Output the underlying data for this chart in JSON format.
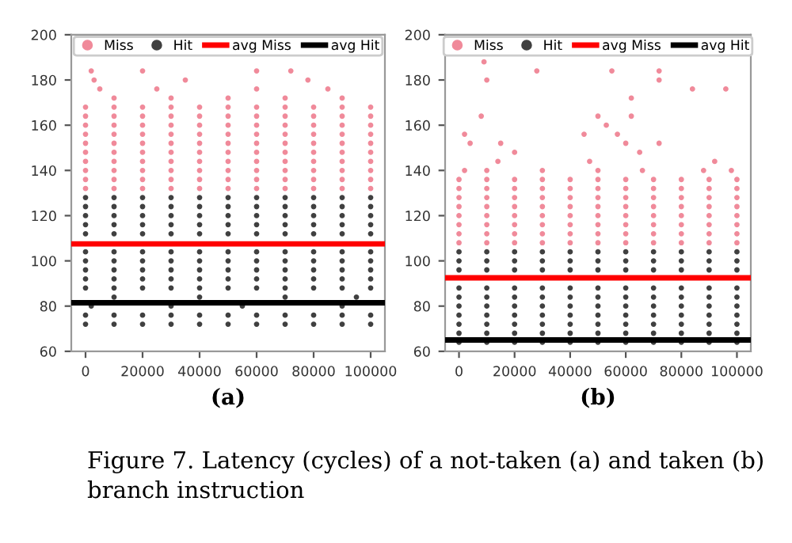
{
  "chart_data": [
    {
      "type": "scatter",
      "xlabel": "(a)",
      "xlim": [
        -5000,
        105000
      ],
      "ylim": [
        60,
        200
      ],
      "xticks": [
        0,
        20000,
        40000,
        60000,
        80000,
        100000
      ],
      "yticks": [
        60,
        80,
        100,
        120,
        140,
        160,
        180,
        200
      ],
      "grid": false,
      "legend": "top",
      "marker": "circle",
      "series": [
        {
          "name": "Miss",
          "color": "#f08a9a",
          "x": [
            0,
            10000,
            20000,
            30000,
            40000,
            50000,
            60000,
            70000,
            80000,
            90000,
            100000,
            0,
            10000,
            20000,
            30000,
            40000,
            50000,
            60000,
            70000,
            80000,
            90000,
            100000,
            0,
            10000,
            20000,
            30000,
            40000,
            50000,
            60000,
            70000,
            80000,
            90000,
            100000,
            0,
            10000,
            20000,
            30000,
            40000,
            50000,
            60000,
            70000,
            80000,
            90000,
            100000,
            0,
            10000,
            20000,
            30000,
            40000,
            50000,
            60000,
            70000,
            80000,
            90000,
            100000,
            0,
            10000,
            20000,
            30000,
            40000,
            50000,
            60000,
            70000,
            80000,
            90000,
            100000,
            0,
            10000,
            20000,
            30000,
            40000,
            50000,
            60000,
            70000,
            80000,
            90000,
            100000,
            0,
            10000,
            20000,
            30000,
            40000,
            50000,
            60000,
            70000,
            80000,
            90000,
            100000,
            0,
            10000,
            20000,
            30000,
            40000,
            50000,
            60000,
            70000,
            80000,
            90000,
            100000,
            0,
            10000,
            20000,
            30000,
            40000,
            50000,
            60000,
            70000,
            80000,
            90000,
            100000,
            10000,
            30000,
            50000,
            70000,
            90000,
            5000,
            25000,
            60000,
            85000,
            3000,
            35000,
            78000,
            2000,
            20000,
            60000,
            72000
          ],
          "values": [
            132,
            132,
            132,
            132,
            132,
            132,
            132,
            132,
            132,
            132,
            132,
            136,
            136,
            136,
            136,
            136,
            136,
            136,
            136,
            136,
            136,
            136,
            140,
            140,
            140,
            140,
            140,
            140,
            140,
            140,
            140,
            140,
            140,
            144,
            144,
            144,
            144,
            144,
            144,
            144,
            144,
            144,
            144,
            144,
            148,
            148,
            148,
            148,
            148,
            148,
            148,
            148,
            148,
            148,
            148,
            152,
            152,
            152,
            152,
            152,
            152,
            152,
            152,
            152,
            152,
            152,
            156,
            156,
            156,
            156,
            156,
            156,
            156,
            156,
            156,
            156,
            156,
            160,
            160,
            160,
            160,
            160,
            160,
            160,
            160,
            160,
            160,
            160,
            164,
            164,
            164,
            164,
            164,
            164,
            164,
            164,
            164,
            164,
            164,
            168,
            168,
            168,
            168,
            168,
            168,
            168,
            168,
            168,
            168,
            168,
            172,
            172,
            172,
            172,
            172,
            176,
            176,
            176,
            176,
            180,
            180,
            180,
            184,
            184,
            184,
            184
          ]
        },
        {
          "name": "Hit",
          "color": "#404040",
          "x": [
            0,
            10000,
            20000,
            30000,
            40000,
            50000,
            60000,
            70000,
            80000,
            90000,
            100000,
            0,
            10000,
            20000,
            30000,
            40000,
            50000,
            60000,
            70000,
            80000,
            90000,
            100000,
            0,
            10000,
            20000,
            30000,
            40000,
            50000,
            60000,
            70000,
            80000,
            90000,
            100000,
            0,
            10000,
            20000,
            30000,
            40000,
            50000,
            60000,
            70000,
            80000,
            90000,
            100000,
            0,
            10000,
            20000,
            30000,
            40000,
            50000,
            60000,
            70000,
            80000,
            90000,
            100000,
            0,
            10000,
            20000,
            30000,
            40000,
            50000,
            60000,
            70000,
            80000,
            90000,
            100000,
            0,
            10000,
            20000,
            30000,
            40000,
            50000,
            60000,
            70000,
            80000,
            90000,
            100000,
            0,
            10000,
            20000,
            30000,
            40000,
            50000,
            60000,
            70000,
            80000,
            90000,
            100000,
            0,
            10000,
            20000,
            30000,
            40000,
            50000,
            60000,
            70000,
            80000,
            90000,
            100000,
            0,
            10000,
            20000,
            30000,
            40000,
            50000,
            60000,
            70000,
            80000,
            90000,
            100000,
            0,
            10000,
            20000,
            30000,
            40000,
            50000,
            60000,
            70000,
            80000,
            90000,
            100000,
            0,
            10000,
            20000,
            30000,
            40000,
            50000,
            60000,
            70000,
            80000,
            90000,
            100000,
            2000,
            30000,
            55000,
            90000,
            10000,
            40000,
            70000,
            95000
          ],
          "values": [
            72,
            72,
            72,
            72,
            72,
            72,
            72,
            72,
            72,
            72,
            72,
            76,
            76,
            76,
            76,
            76,
            76,
            76,
            76,
            76,
            76,
            76,
            88,
            88,
            88,
            88,
            88,
            88,
            88,
            88,
            88,
            88,
            88,
            92,
            92,
            92,
            92,
            92,
            92,
            92,
            92,
            92,
            92,
            92,
            96,
            96,
            96,
            96,
            96,
            96,
            96,
            96,
            96,
            96,
            96,
            100,
            100,
            100,
            100,
            100,
            100,
            100,
            100,
            100,
            100,
            100,
            104,
            104,
            104,
            104,
            104,
            104,
            104,
            104,
            104,
            104,
            104,
            112,
            112,
            112,
            112,
            112,
            112,
            112,
            112,
            112,
            112,
            112,
            116,
            116,
            116,
            116,
            116,
            116,
            116,
            116,
            116,
            116,
            116,
            120,
            120,
            120,
            120,
            120,
            120,
            120,
            120,
            120,
            120,
            120,
            124,
            124,
            124,
            124,
            124,
            124,
            124,
            124,
            124,
            124,
            124,
            128,
            128,
            128,
            128,
            128,
            128,
            128,
            128,
            128,
            128,
            128,
            80,
            80,
            80,
            80,
            84,
            84,
            84,
            84
          ]
        }
      ],
      "ref_lines": [
        {
          "axis": "y",
          "value": 107.5,
          "label": "avg Miss",
          "color": "#ff0000"
        },
        {
          "axis": "y",
          "value": 81.5,
          "label": "avg Hit",
          "color": "#000000"
        }
      ],
      "annotations": [
        "Figure 7. Latency (cycles) of a not-taken (a) and taken (b) branch instruction"
      ]
    },
    {
      "type": "scatter",
      "xlabel": "(b)",
      "xlim": [
        -5000,
        105000
      ],
      "ylim": [
        60,
        200
      ],
      "xticks": [
        0,
        20000,
        40000,
        60000,
        80000,
        100000
      ],
      "yticks": [
        60,
        80,
        100,
        120,
        140,
        160,
        180,
        200
      ],
      "grid": false,
      "legend": "top",
      "marker": "circle",
      "series": [
        {
          "name": "Miss",
          "color": "#f08a9a",
          "x": [
            0,
            10000,
            20000,
            30000,
            40000,
            50000,
            60000,
            70000,
            80000,
            90000,
            100000,
            0,
            10000,
            20000,
            30000,
            40000,
            50000,
            60000,
            70000,
            80000,
            90000,
            100000,
            0,
            10000,
            20000,
            30000,
            40000,
            50000,
            60000,
            70000,
            80000,
            90000,
            100000,
            0,
            10000,
            20000,
            30000,
            40000,
            50000,
            60000,
            70000,
            80000,
            90000,
            100000,
            0,
            10000,
            20000,
            30000,
            40000,
            50000,
            60000,
            70000,
            80000,
            90000,
            100000,
            0,
            10000,
            20000,
            30000,
            40000,
            50000,
            60000,
            70000,
            80000,
            90000,
            100000,
            0,
            10000,
            20000,
            30000,
            40000,
            50000,
            60000,
            70000,
            80000,
            90000,
            100000,
            0,
            10000,
            20000,
            30000,
            40000,
            50000,
            60000,
            70000,
            80000,
            90000,
            100000,
            2000,
            10000,
            30000,
            50000,
            66000,
            88000,
            98000,
            14000,
            47000,
            92000,
            20000,
            65000,
            4000,
            15000,
            60000,
            72000,
            2000,
            45000,
            57000,
            53000,
            8000,
            50000,
            62000,
            62000,
            84000,
            96000,
            10000,
            72000,
            28000,
            55000,
            72000,
            9000
          ],
          "values": [
            108,
            108,
            108,
            108,
            108,
            108,
            108,
            108,
            108,
            108,
            108,
            112,
            112,
            112,
            112,
            112,
            112,
            112,
            112,
            112,
            112,
            112,
            116,
            116,
            116,
            116,
            116,
            116,
            116,
            116,
            116,
            116,
            116,
            120,
            120,
            120,
            120,
            120,
            120,
            120,
            120,
            120,
            120,
            120,
            124,
            124,
            124,
            124,
            124,
            124,
            124,
            124,
            124,
            124,
            124,
            128,
            128,
            128,
            128,
            128,
            128,
            128,
            128,
            128,
            128,
            128,
            132,
            132,
            132,
            132,
            132,
            132,
            132,
            132,
            132,
            132,
            132,
            136,
            136,
            136,
            136,
            136,
            136,
            136,
            136,
            136,
            136,
            136,
            140,
            140,
            140,
            140,
            140,
            140,
            140,
            144,
            144,
            144,
            148,
            148,
            152,
            152,
            152,
            152,
            156,
            156,
            156,
            160,
            164,
            164,
            164,
            172,
            176,
            176,
            180,
            180,
            184,
            184,
            184,
            188
          ]
        },
        {
          "name": "Hit",
          "color": "#404040",
          "x": [
            0,
            10000,
            20000,
            30000,
            40000,
            50000,
            60000,
            70000,
            80000,
            90000,
            100000,
            0,
            10000,
            20000,
            30000,
            40000,
            50000,
            60000,
            70000,
            80000,
            90000,
            100000,
            0,
            10000,
            20000,
            30000,
            40000,
            50000,
            60000,
            70000,
            80000,
            90000,
            100000,
            0,
            10000,
            20000,
            30000,
            40000,
            50000,
            60000,
            70000,
            80000,
            90000,
            100000,
            0,
            10000,
            20000,
            30000,
            40000,
            50000,
            60000,
            70000,
            80000,
            90000,
            100000,
            0,
            10000,
            20000,
            30000,
            40000,
            50000,
            60000,
            70000,
            80000,
            90000,
            100000,
            0,
            10000,
            20000,
            30000,
            40000,
            50000,
            60000,
            70000,
            80000,
            90000,
            100000,
            0,
            10000,
            20000,
            30000,
            40000,
            50000,
            60000,
            70000,
            80000,
            90000,
            100000,
            0,
            10000,
            20000,
            30000,
            40000,
            50000,
            60000,
            70000,
            80000,
            90000,
            100000,
            0,
            10000,
            20000,
            30000,
            40000,
            50000,
            60000,
            70000,
            80000,
            90000,
            100000
          ],
          "values": [
            64,
            64,
            64,
            64,
            64,
            64,
            64,
            64,
            64,
            64,
            64,
            68,
            68,
            68,
            68,
            68,
            68,
            68,
            68,
            68,
            68,
            68,
            72,
            72,
            72,
            72,
            72,
            72,
            72,
            72,
            72,
            72,
            72,
            76,
            76,
            76,
            76,
            76,
            76,
            76,
            76,
            76,
            76,
            76,
            80,
            80,
            80,
            80,
            80,
            80,
            80,
            80,
            80,
            80,
            80,
            84,
            84,
            84,
            84,
            84,
            84,
            84,
            84,
            84,
            84,
            84,
            88,
            88,
            88,
            88,
            88,
            88,
            88,
            88,
            88,
            88,
            88,
            96,
            96,
            96,
            96,
            96,
            96,
            96,
            96,
            96,
            96,
            96,
            100,
            100,
            100,
            100,
            100,
            100,
            100,
            100,
            100,
            100,
            100,
            104,
            104,
            104,
            104,
            104,
            104,
            104,
            104,
            104,
            104,
            104
          ]
        }
      ],
      "ref_lines": [
        {
          "axis": "y",
          "value": 92.5,
          "label": "avg Miss",
          "color": "#ff0000"
        },
        {
          "axis": "y",
          "value": 65,
          "label": "avg Hit",
          "color": "#000000"
        }
      ]
    }
  ]
}
